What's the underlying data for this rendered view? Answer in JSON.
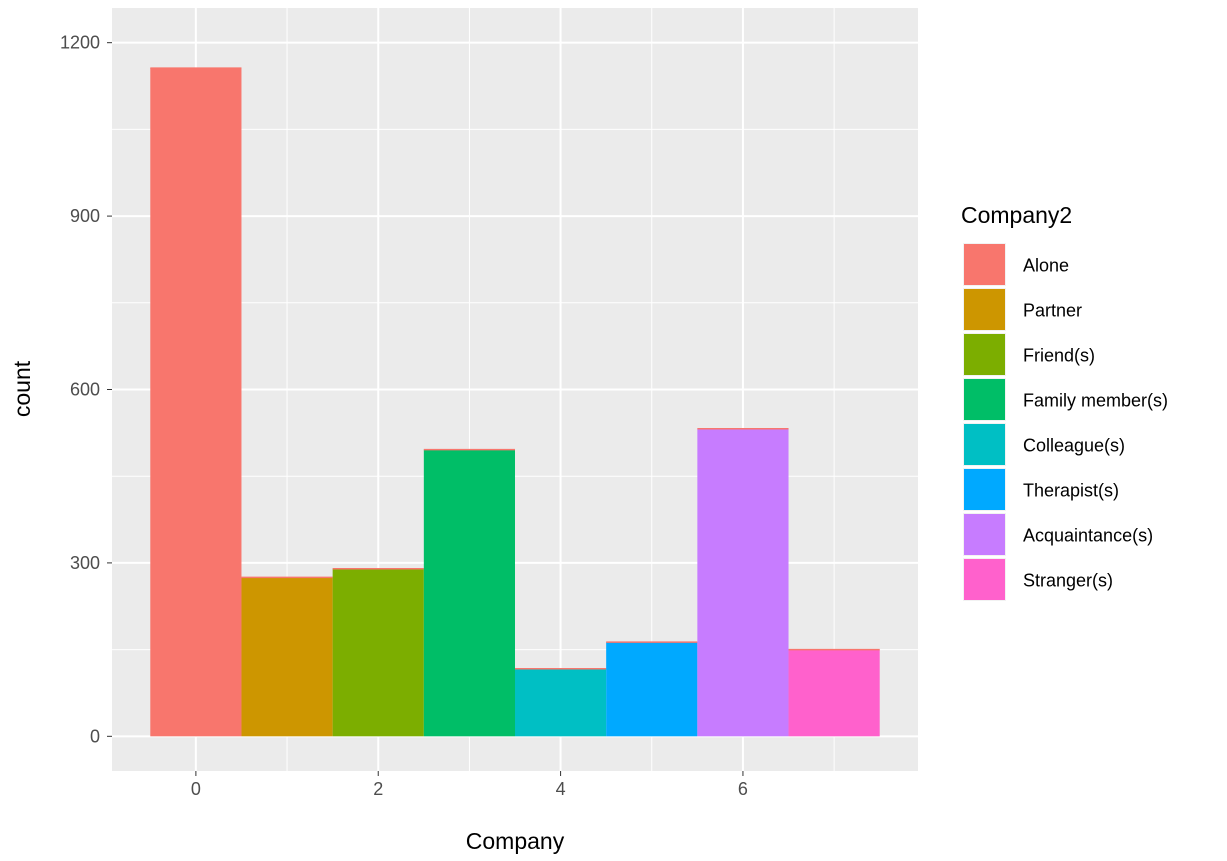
{
  "chart_data": {
    "type": "bar",
    "xlabel": "Company",
    "ylabel": "count",
    "x_ticks": [
      0,
      2,
      4,
      6
    ],
    "y_ticks": [
      0,
      300,
      600,
      900,
      1200
    ],
    "xlim": [
      -0.92,
      7.92
    ],
    "ylim": [
      -60,
      1260
    ],
    "grid": true,
    "legend_title": "Company2",
    "legend_position": "right",
    "bars": [
      {
        "x": 0,
        "value": 1156,
        "category": "Alone"
      },
      {
        "x": 1,
        "value": 275,
        "category": "Partner"
      },
      {
        "x": 2,
        "value": 290,
        "category": "Friend(s)"
      },
      {
        "x": 3,
        "value": 496,
        "category": "Family member(s)"
      },
      {
        "x": 4,
        "value": 117,
        "category": "Colleague(s)"
      },
      {
        "x": 5,
        "value": 163,
        "category": "Therapist(s)"
      },
      {
        "x": 6,
        "value": 532,
        "category": "Acquaintance(s)"
      },
      {
        "x": 7,
        "value": 150,
        "category": "Stranger(s)"
      }
    ],
    "legend": [
      {
        "label": "Alone",
        "color": "#F8766D"
      },
      {
        "label": "Partner",
        "color": "#CD9600"
      },
      {
        "label": "Friend(s)",
        "color": "#7CAE00"
      },
      {
        "label": "Family member(s)",
        "color": "#00BE67"
      },
      {
        "label": "Colleague(s)",
        "color": "#00BFC4"
      },
      {
        "label": "Therapist(s)",
        "color": "#00A9FF"
      },
      {
        "label": "Acquaintance(s)",
        "color": "#C77CFF"
      },
      {
        "label": "Stranger(s)",
        "color": "#FF61CC"
      }
    ],
    "colors": {
      "panel_background": "#EBEBEB",
      "grid_major": "#FFFFFF",
      "bar_outline": "#F8766D"
    }
  }
}
